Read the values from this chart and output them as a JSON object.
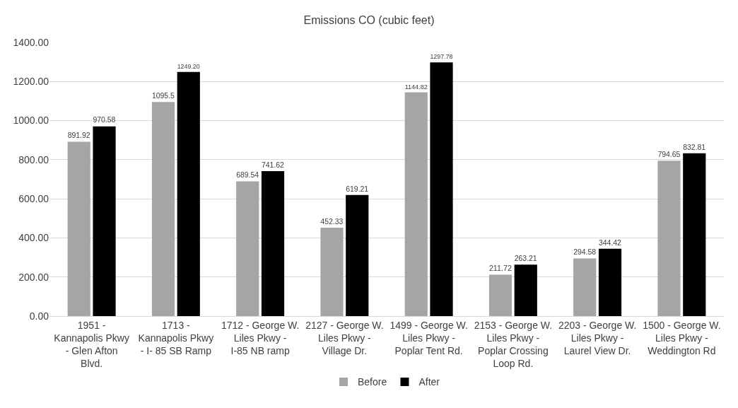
{
  "chart_data": {
    "type": "bar",
    "title": "Emissions CO (cubic feet)",
    "categories": [
      "1951 - Kannapolis Pkwy - Glen Afton Blvd.",
      "1713 - Kannapolis Pkwy - I- 85 SB Ramp",
      "1712 - George W. Liles Pkwy - I-85 NB ramp",
      "2127 - George W. Liles Pkwy - Village Dr.",
      "1499 - George W. Liles Pkwy - Poplar Tent Rd.",
      "2153 - George W. Liles Pkwy - Poplar Crossing Loop Rd.",
      "2203 - George W. Liles Pkwy - Laurel View Dr.",
      "1500 - George W. Liles Pkwy - Weddington Rd"
    ],
    "series": [
      {
        "name": "Before",
        "color": "#a5a5a5",
        "values": [
          891.92,
          1095.5,
          689.54,
          452.33,
          1144.82,
          211.72,
          294.58,
          794.65
        ],
        "value_labels": [
          "891.92",
          "1095.5",
          "689.54",
          "452.33",
          "1144.82",
          "211.72",
          "294.58",
          "794.65"
        ]
      },
      {
        "name": "After",
        "color": "#000000",
        "values": [
          970.58,
          1249.2,
          741.62,
          619.21,
          1297.78,
          263.21,
          344.42,
          832.81
        ],
        "value_labels": [
          "970.58",
          "1249.20",
          "741.62",
          "619.21",
          "1297.78",
          "263.21",
          "344.42",
          "832.81"
        ]
      }
    ],
    "ylim": [
      0,
      1400
    ],
    "yticks": [
      {
        "value": 0,
        "label": "0.00"
      },
      {
        "value": 200,
        "label": "200.00"
      },
      {
        "value": 400,
        "label": "400.00"
      },
      {
        "value": 600,
        "label": "600.00"
      },
      {
        "value": 800,
        "label": "800.00"
      },
      {
        "value": 1000,
        "label": "1000.00"
      },
      {
        "value": 1200,
        "label": "1200.00"
      },
      {
        "value": 1400,
        "label": "1400.00"
      }
    ],
    "grid": "y",
    "legend": "bottom"
  }
}
